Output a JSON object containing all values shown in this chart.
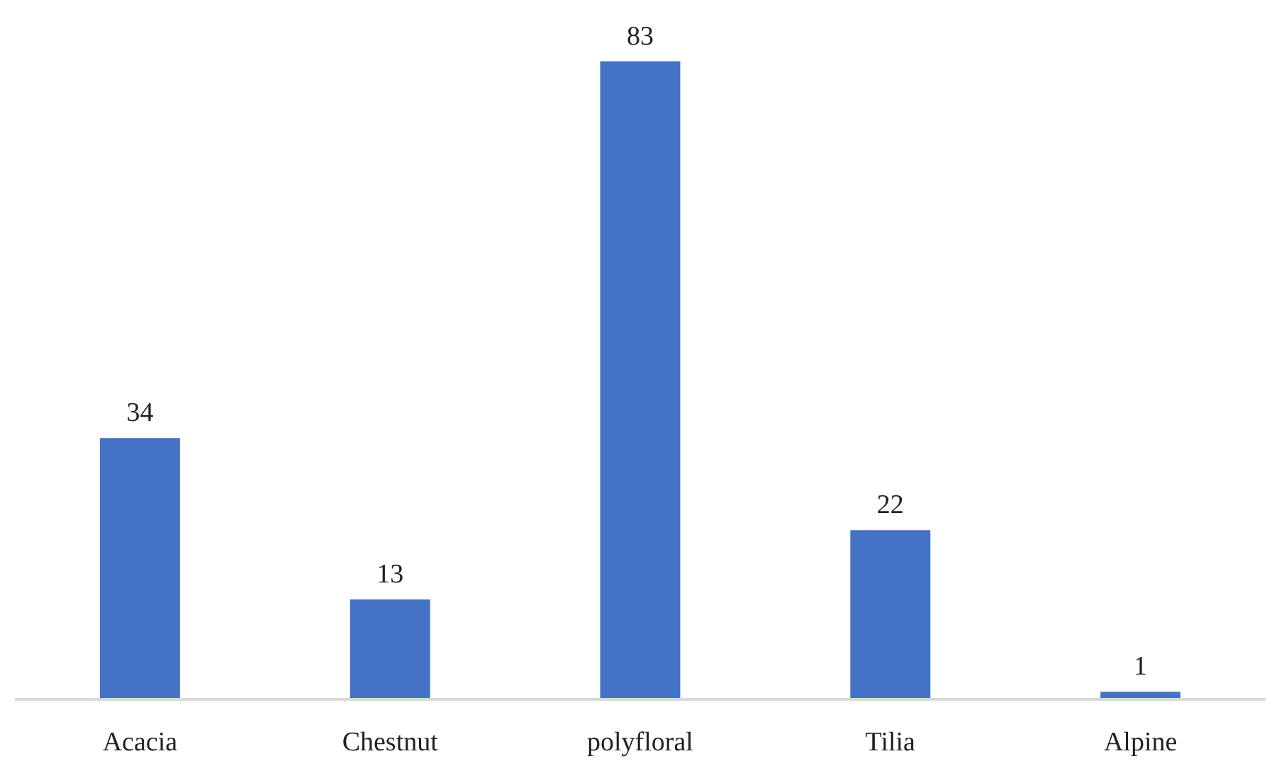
{
  "chart_data": {
    "type": "bar",
    "categories": [
      "Acacia",
      "Chestnut",
      "polyfloral",
      "Tilia",
      "Alpine"
    ],
    "values": [
      34,
      13,
      83,
      22,
      1
    ],
    "color": "#4472c4",
    "data_labels": true,
    "tick_labels": "x"
  }
}
